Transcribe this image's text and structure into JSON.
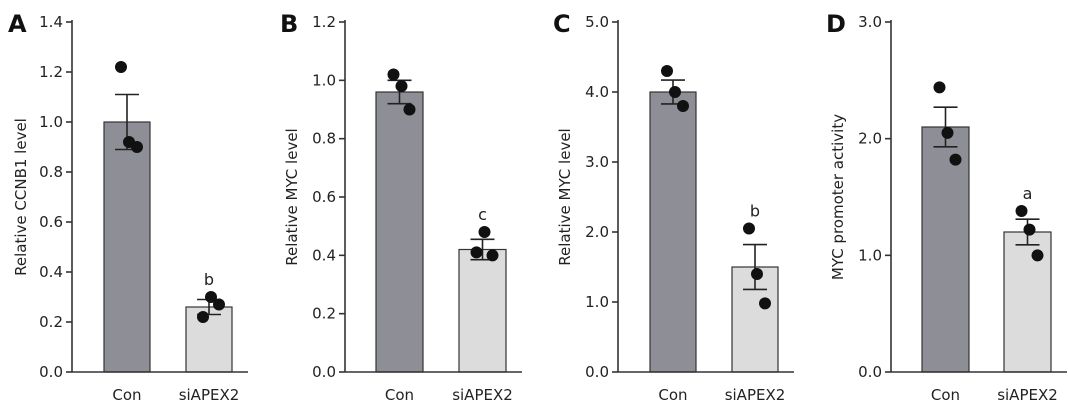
{
  "chart_data": [
    {
      "type": "bar",
      "panel": "A",
      "ylabel": "Relative CCNB1 level",
      "ylim": [
        0.0,
        1.4
      ],
      "yticks": [
        "0.0",
        "0.2",
        "0.4",
        "0.6",
        "0.8",
        "1.0",
        "1.2",
        "1.4"
      ],
      "categories": [
        "Con",
        "siAPEX2"
      ],
      "values": [
        1.0,
        0.26
      ],
      "errors": [
        0.11,
        0.03
      ],
      "points": [
        [
          1.22,
          0.92,
          0.9
        ],
        [
          0.22,
          0.3,
          0.27
        ]
      ],
      "annotations": [
        "",
        "b"
      ],
      "colors": [
        "#8e8e96",
        "#dcdcdc"
      ]
    },
    {
      "type": "bar",
      "panel": "B",
      "ylabel": "Relative MYC level",
      "ylim": [
        0.0,
        1.2
      ],
      "yticks": [
        "0.0",
        "0.2",
        "0.4",
        "0.6",
        "0.8",
        "1.0",
        "1.2"
      ],
      "categories": [
        "Con",
        "siAPEX2"
      ],
      "values": [
        0.96,
        0.42
      ],
      "errors": [
        0.04,
        0.035
      ],
      "points": [
        [
          1.02,
          0.98,
          0.9
        ],
        [
          0.41,
          0.48,
          0.4
        ]
      ],
      "annotations": [
        "",
        "c"
      ],
      "colors": [
        "#8e8e96",
        "#dcdcdc"
      ]
    },
    {
      "type": "bar",
      "panel": "C",
      "ylabel": "Relative MYC level",
      "ylim": [
        0.0,
        5.0
      ],
      "yticks": [
        "0.0",
        "1.0",
        "2.0",
        "3.0",
        "4.0",
        "5.0"
      ],
      "categories": [
        "Con",
        "siAPEX2"
      ],
      "values": [
        4.0,
        1.5
      ],
      "errors": [
        0.17,
        0.32
      ],
      "points": [
        [
          4.3,
          4.0,
          3.8
        ],
        [
          2.05,
          1.4,
          0.98
        ]
      ],
      "annotations": [
        "",
        "b"
      ],
      "colors": [
        "#8e8e96",
        "#dcdcdc"
      ]
    },
    {
      "type": "bar",
      "panel": "D",
      "ylabel": "MYC promoter activity",
      "ylim": [
        0.0,
        3.0
      ],
      "yticks": [
        "0.0",
        "1.0",
        "2.0",
        "3.0"
      ],
      "categories": [
        "Con",
        "siAPEX2"
      ],
      "values": [
        2.1,
        1.2
      ],
      "errors": [
        0.17,
        0.11
      ],
      "points": [
        [
          2.44,
          2.05,
          1.82
        ],
        [
          1.38,
          1.22,
          1.0
        ]
      ],
      "annotations": [
        "",
        "a"
      ],
      "colors": [
        "#8e8e96",
        "#dcdcdc"
      ]
    }
  ]
}
